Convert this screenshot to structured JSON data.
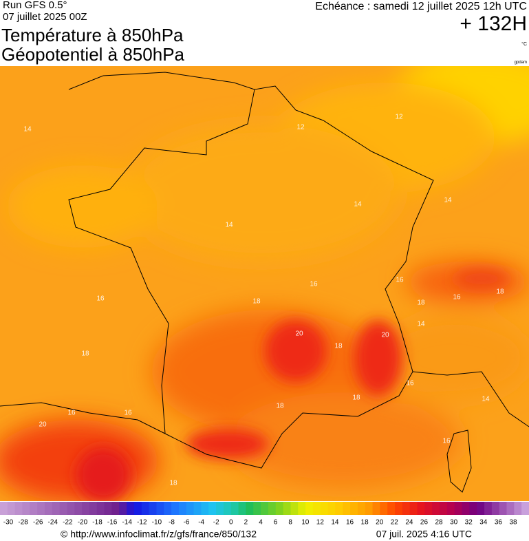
{
  "header": {
    "run": "Run GFS 0.5°",
    "run_date": "07 juillet 2025 00Z",
    "title_temperature": "Température à 850hPa",
    "title_geopotential": "Géopotentiel à 850hPa",
    "echeance": "Echéance : samedi 12 juillet 2025 12h UTC",
    "lead_time": "+ 132H",
    "unit": "°C",
    "geopotential_unit": "gpdam"
  },
  "map": {
    "contour_labels": [
      "14",
      "12",
      "12",
      "14",
      "14",
      "14",
      "16",
      "16",
      "16",
      "18",
      "18",
      "16",
      "18",
      "20",
      "18",
      "20",
      "14",
      "18",
      "16",
      "18",
      "18",
      "16",
      "16",
      "20",
      "14",
      "16",
      "18"
    ]
  },
  "colorbar": {
    "ticks": [
      -30,
      -28,
      -26,
      -24,
      -22,
      -20,
      -18,
      -16,
      -14,
      -12,
      -10,
      -8,
      -6,
      -4,
      -2,
      0,
      2,
      4,
      6,
      8,
      10,
      12,
      14,
      16,
      18,
      20,
      22,
      24,
      26,
      28,
      30,
      32,
      34,
      36,
      38
    ]
  },
  "footer": {
    "source": "© http://www.infoclimat.fr/z/gfs/france/850/132",
    "issued": "07 juil. 2025  4:16 UTC"
  }
}
